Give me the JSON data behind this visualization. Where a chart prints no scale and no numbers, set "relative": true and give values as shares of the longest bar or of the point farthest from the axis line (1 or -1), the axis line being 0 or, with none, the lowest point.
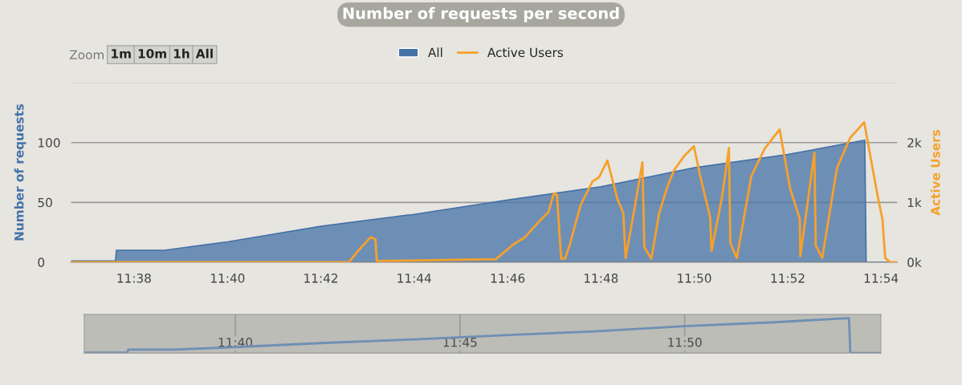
{
  "chart_data": [
    {
      "type": "area",
      "title": "Number of requests per second",
      "ylabel": "Number of requests",
      "y2label": "Active Users",
      "annotations": [
        "Zoom",
        "1m",
        "10m",
        "1h",
        "All"
      ],
      "legend": "top",
      "grid": "y",
      "xlim": [
        11.6107,
        11.906
      ],
      "xticks": [
        {
          "value": 11.6333,
          "label": "11:38"
        },
        {
          "value": 11.6667,
          "label": "11:40"
        },
        {
          "value": 11.7,
          "label": "11:42"
        },
        {
          "value": 11.7333,
          "label": "11:44"
        },
        {
          "value": 11.7667,
          "label": "11:46"
        },
        {
          "value": 11.8,
          "label": "11:48"
        },
        {
          "value": 11.8333,
          "label": "11:50"
        },
        {
          "value": 11.8667,
          "label": "11:52"
        },
        {
          "value": 11.9,
          "label": "11:54"
        }
      ],
      "ylim": [
        0,
        150
      ],
      "yticks": [
        0,
        50,
        100,
        {
          "value": 150,
          "label": null
        }
      ],
      "y2lim": [
        0,
        3000
      ],
      "y2ticks": [
        {
          "value": 0,
          "label": "0k"
        },
        {
          "value": 1000,
          "label": "1k"
        },
        {
          "value": 2000,
          "label": "2k"
        }
      ],
      "series": [
        {
          "name": "All",
          "type": "area",
          "color": "#4572a7",
          "x": [
            11.6107,
            11.6267,
            11.627,
            11.6442,
            11.6667,
            11.7,
            11.7333,
            11.7667,
            11.8,
            11.8333,
            11.8667,
            11.8942,
            11.8947,
            11.906
          ],
          "values": [
            1,
            1,
            10,
            10,
            17,
            30,
            40,
            52,
            63,
            79,
            90,
            102,
            0,
            0
          ]
        },
        {
          "name": "Active Users",
          "type": "line",
          "axis": "y2",
          "color": "#f7a02a",
          "x": [
            11.6107,
            11.71,
            11.7135,
            11.7178,
            11.7195,
            11.72,
            11.7625,
            11.7688,
            11.7727,
            11.7783,
            11.7813,
            11.7832,
            11.7843,
            11.7858,
            11.7872,
            11.7888,
            11.7927,
            11.797,
            11.7993,
            11.8023,
            11.806,
            11.808,
            11.8088,
            11.8117,
            11.8148,
            11.8155,
            11.818,
            11.8208,
            11.8237,
            11.826,
            11.8298,
            11.8332,
            11.8352,
            11.839,
            11.8395,
            11.8432,
            11.8457,
            11.8462,
            11.8485,
            11.8537,
            11.8585,
            11.8638,
            11.8675,
            11.871,
            11.8712,
            11.8762,
            11.8767,
            11.879,
            11.8843,
            11.889,
            11.894,
            11.8987,
            11.9005,
            11.9015,
            11.9033,
            11.9057
          ],
          "values": [
            0,
            0,
            200,
            420,
            380,
            20,
            50,
            300,
            410,
            700,
            840,
            1150,
            1130,
            60,
            60,
            280,
            950,
            1350,
            1420,
            1700,
            1040,
            820,
            70,
            820,
            1670,
            250,
            60,
            820,
            1260,
            1530,
            1780,
            1940,
            1490,
            750,
            190,
            1080,
            1910,
            320,
            70,
            1440,
            1900,
            2220,
            1240,
            720,
            100,
            1830,
            280,
            70,
            1580,
            2080,
            2340,
            1130,
            720,
            70,
            0,
            0
          ]
        }
      ]
    },
    {
      "type": "line",
      "relative": true,
      "tick_labels": "x",
      "grid": "x",
      "xlim": [
        11.6107,
        11.906
      ],
      "xticks": [
        {
          "value": 11.6667,
          "label": "11:40"
        },
        {
          "value": 11.75,
          "label": "11:45"
        },
        {
          "value": 11.8333,
          "label": "11:50"
        }
      ],
      "series": [
        {
          "color": "#6f8fb4",
          "x": [
            11.6107,
            11.6267,
            11.627,
            11.6442,
            11.6667,
            11.7,
            11.7333,
            11.7667,
            11.8,
            11.8333,
            11.8667,
            11.8942,
            11.8947,
            11.906
          ],
          "values": [
            0.01,
            0.01,
            0.1,
            0.1,
            0.17,
            0.29,
            0.39,
            0.51,
            0.62,
            0.77,
            0.88,
            1,
            0,
            0
          ]
        }
      ]
    }
  ]
}
